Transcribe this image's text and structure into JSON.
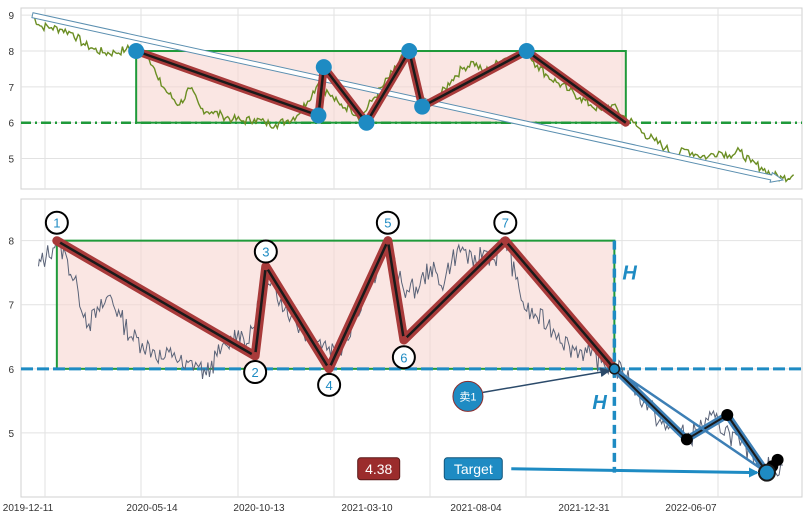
{
  "chart_data": [
    {
      "type": "line",
      "panel": "top",
      "title": "",
      "xlabel": "",
      "ylabel": "",
      "ylim": [
        4.15,
        9.2
      ],
      "yticks": [
        5,
        6,
        7,
        8,
        9
      ],
      "grid": true,
      "series": [
        {
          "color": "#6b8e23",
          "points": [
            [
              "2019-12-26",
              9.0
            ],
            [
              "2020-01-05",
              8.7
            ],
            [
              "2020-01-20",
              8.65
            ],
            [
              "2020-02-03",
              8.6
            ],
            [
              "2020-02-17",
              8.5
            ],
            [
              "2020-03-02",
              8.2
            ],
            [
              "2020-03-16",
              8.05
            ],
            [
              "2020-03-30",
              7.95
            ],
            [
              "2020-04-13",
              7.95
            ],
            [
              "2020-04-27",
              8.05
            ],
            [
              "2020-05-11",
              8.1
            ],
            [
              "2020-05-25",
              8.0
            ],
            [
              "2020-06-08",
              7.2
            ],
            [
              "2020-06-22",
              6.8
            ],
            [
              "2020-07-06",
              6.5
            ],
            [
              "2020-07-20",
              6.95
            ],
            [
              "2020-08-03",
              6.4
            ],
            [
              "2020-08-17",
              6.3
            ],
            [
              "2020-08-31",
              6.2
            ],
            [
              "2020-09-14",
              6.1
            ],
            [
              "2020-09-28",
              6.05
            ],
            [
              "2020-10-12",
              6.1
            ],
            [
              "2020-10-26",
              6.0
            ],
            [
              "2020-11-09",
              5.95
            ],
            [
              "2020-11-23",
              6.05
            ],
            [
              "2020-12-07",
              6.2
            ],
            [
              "2020-12-21",
              6.6
            ],
            [
              "2021-01-04",
              7.1
            ],
            [
              "2021-01-18",
              6.8
            ],
            [
              "2021-02-01",
              6.5
            ],
            [
              "2021-02-15",
              6.4
            ],
            [
              "2021-03-01",
              6.15
            ],
            [
              "2021-03-15",
              6.6
            ],
            [
              "2021-03-29",
              7.0
            ],
            [
              "2021-04-12",
              7.4
            ],
            [
              "2021-04-26",
              7.9
            ],
            [
              "2021-05-03",
              7.95
            ],
            [
              "2021-05-17",
              6.7
            ],
            [
              "2021-05-31",
              6.5
            ],
            [
              "2021-06-14",
              6.8
            ],
            [
              "2021-06-28",
              7.2
            ],
            [
              "2021-07-12",
              7.5
            ],
            [
              "2021-07-26",
              7.7
            ],
            [
              "2021-08-09",
              7.4
            ],
            [
              "2021-08-23",
              7.6
            ],
            [
              "2021-09-06",
              7.8
            ],
            [
              "2021-09-20",
              7.9
            ],
            [
              "2021-10-04",
              8.0
            ],
            [
              "2021-10-18",
              7.6
            ],
            [
              "2021-11-01",
              7.3
            ],
            [
              "2021-11-15",
              7.1
            ],
            [
              "2021-11-29",
              6.9
            ],
            [
              "2021-12-13",
              6.7
            ],
            [
              "2021-12-27",
              6.5
            ],
            [
              "2022-01-10",
              6.35
            ],
            [
              "2022-01-24",
              6.5
            ],
            [
              "2022-02-07",
              6.2
            ],
            [
              "2022-02-21",
              6.0
            ],
            [
              "2022-03-07",
              5.7
            ],
            [
              "2022-03-21",
              5.5
            ],
            [
              "2022-04-04",
              5.3
            ],
            [
              "2022-04-18",
              5.1
            ],
            [
              "2022-05-02",
              5.25
            ],
            [
              "2022-05-16",
              5.1
            ],
            [
              "2022-05-30",
              5.05
            ],
            [
              "2022-06-13",
              5.2
            ],
            [
              "2022-06-27",
              5.1
            ],
            [
              "2022-07-11",
              5.2
            ],
            [
              "2022-07-25",
              4.9
            ],
            [
              "2022-08-08",
              4.75
            ],
            [
              "2022-08-22",
              4.55
            ],
            [
              "2022-09-05",
              4.45
            ],
            [
              "2022-09-19",
              4.55
            ]
          ]
        }
      ],
      "pattern_box": {
        "x0": "2020-05-10",
        "x1": "2022-02-11",
        "y0": 6.0,
        "y1": 8.0,
        "stroke": "#1f9a3a",
        "fill": "#f6d6d0"
      },
      "neckline": {
        "y": 6.0,
        "color": "#1f9a3a"
      },
      "trend_arrow": {
        "from": [
          "2019-12-26",
          9.0
        ],
        "to": [
          "2022-09-05",
          4.4
        ]
      },
      "zigzag": [
        [
          "2020-05-10",
          8.0
        ],
        [
          "2021-01-04",
          6.2
        ],
        [
          "2021-01-11",
          7.55
        ],
        [
          "2021-03-08",
          6.0
        ],
        [
          "2021-05-03",
          8.0
        ],
        [
          "2021-05-20",
          6.45
        ],
        [
          "2021-10-04",
          8.0
        ],
        [
          "2022-02-11",
          6.0
        ]
      ],
      "zigzag_markers": [
        [
          "2020-05-10",
          8.0
        ],
        [
          "2021-01-04",
          6.2
        ],
        [
          "2021-01-11",
          7.55
        ],
        [
          "2021-03-08",
          6.0
        ],
        [
          "2021-05-03",
          8.0
        ],
        [
          "2021-05-20",
          6.45
        ],
        [
          "2021-10-04",
          8.0
        ]
      ]
    },
    {
      "type": "line",
      "panel": "bottom",
      "title": "",
      "xlabel": "",
      "ylabel": "",
      "ylim": [
        4.0,
        8.65
      ],
      "yticks": [
        5,
        6,
        7,
        8
      ],
      "xticks": [
        "2019-12-11",
        "2020-05-14",
        "2020-10-13",
        "2021-03-10",
        "2021-08-04",
        "2021-12-31",
        "2022-06-07"
      ],
      "grid": true,
      "series": [
        {
          "color": "#5a6378",
          "points": [
            [
              "2020-01-03",
              7.6
            ],
            [
              "2020-01-13",
              7.75
            ],
            [
              "2020-01-27",
              8.0
            ],
            [
              "2020-02-10",
              7.7
            ],
            [
              "2020-02-24",
              7.2
            ],
            [
              "2020-03-09",
              6.7
            ],
            [
              "2020-03-23",
              6.9
            ],
            [
              "2020-04-06",
              7.15
            ],
            [
              "2020-04-20",
              6.8
            ],
            [
              "2020-05-04",
              6.5
            ],
            [
              "2020-05-18",
              6.4
            ],
            [
              "2020-06-01",
              6.3
            ],
            [
              "2020-06-15",
              6.15
            ],
            [
              "2020-06-29",
              6.25
            ],
            [
              "2020-07-13",
              6.0
            ],
            [
              "2020-07-27",
              6.1
            ],
            [
              "2020-08-10",
              5.9
            ],
            [
              "2020-08-24",
              6.2
            ],
            [
              "2020-09-07",
              6.35
            ],
            [
              "2020-09-21",
              6.6
            ],
            [
              "2020-10-05",
              6.4
            ],
            [
              "2020-10-19",
              7.0
            ],
            [
              "2020-11-02",
              7.3
            ],
            [
              "2020-11-16",
              7.1
            ],
            [
              "2020-11-30",
              6.85
            ],
            [
              "2020-12-14",
              6.6
            ],
            [
              "2020-12-28",
              6.5
            ],
            [
              "2021-01-11",
              6.4
            ],
            [
              "2021-01-25",
              6.3
            ],
            [
              "2021-02-08",
              6.4
            ],
            [
              "2021-02-22",
              6.9
            ],
            [
              "2021-03-08",
              7.2
            ],
            [
              "2021-03-22",
              7.5
            ],
            [
              "2021-04-05",
              8.0
            ],
            [
              "2021-04-19",
              7.4
            ],
            [
              "2021-05-03",
              7.2
            ],
            [
              "2021-05-17",
              7.3
            ],
            [
              "2021-05-31",
              7.6
            ],
            [
              "2021-06-14",
              7.3
            ],
            [
              "2021-06-28",
              7.7
            ],
            [
              "2021-07-12",
              7.9
            ],
            [
              "2021-07-26",
              7.6
            ],
            [
              "2021-08-09",
              7.85
            ],
            [
              "2021-08-23",
              7.7
            ],
            [
              "2021-09-06",
              8.05
            ],
            [
              "2021-09-20",
              7.4
            ],
            [
              "2021-10-04",
              6.9
            ],
            [
              "2021-10-18",
              6.8
            ],
            [
              "2021-11-01",
              6.7
            ],
            [
              "2021-11-15",
              6.55
            ],
            [
              "2021-11-29",
              6.35
            ],
            [
              "2021-12-13",
              6.3
            ],
            [
              "2021-12-27",
              6.2
            ],
            [
              "2022-01-10",
              6.1
            ],
            [
              "2022-01-24",
              6.0
            ],
            [
              "2022-02-07",
              5.95
            ],
            [
              "2022-02-21",
              5.75
            ],
            [
              "2022-03-07",
              5.5
            ],
            [
              "2022-03-21",
              5.3
            ],
            [
              "2022-04-04",
              5.05
            ],
            [
              "2022-04-18",
              5.1
            ],
            [
              "2022-05-02",
              4.9
            ],
            [
              "2022-05-16",
              5.05
            ],
            [
              "2022-05-30",
              5.2
            ],
            [
              "2022-06-13",
              5.15
            ],
            [
              "2022-06-27",
              5.0
            ],
            [
              "2022-07-11",
              4.8
            ],
            [
              "2022-07-25",
              4.7
            ],
            [
              "2022-08-08",
              4.55
            ],
            [
              "2022-08-22",
              4.45
            ],
            [
              "2022-09-05",
              4.5
            ]
          ]
        }
      ],
      "pattern_box": {
        "x0": "2020-01-27",
        "x1": "2022-01-27",
        "y0": 6.0,
        "y1": 8.0,
        "stroke": "#1f9a3a",
        "fill": "#f6d6d0"
      },
      "neckline": {
        "y": 6.0,
        "color": "#1e8bc3"
      },
      "zigzag": [
        [
          "2020-01-27",
          8.0
        ],
        [
          "2020-10-13",
          6.2
        ],
        [
          "2020-10-27",
          7.6
        ],
        [
          "2021-01-18",
          6.0
        ],
        [
          "2021-04-05",
          8.0
        ],
        [
          "2021-04-26",
          6.45
        ],
        [
          "2021-09-06",
          8.0
        ],
        [
          "2022-01-27",
          6.0
        ]
      ],
      "points": [
        {
          "label": "1",
          "at": [
            "2020-01-27",
            8.0
          ],
          "label_at": [
            "2020-01-27",
            8.28
          ]
        },
        {
          "label": "2",
          "at": [
            "2020-10-13",
            6.2
          ],
          "label_at": [
            "2020-10-13",
            5.95
          ]
        },
        {
          "label": "3",
          "at": [
            "2020-10-27",
            7.6
          ],
          "label_at": [
            "2020-10-27",
            7.83
          ]
        },
        {
          "label": "4",
          "at": [
            "2021-01-18",
            6.0
          ],
          "label_at": [
            "2021-01-18",
            5.75
          ]
        },
        {
          "label": "5",
          "at": [
            "2021-04-05",
            8.0
          ],
          "label_at": [
            "2021-04-05",
            8.28
          ]
        },
        {
          "label": "6",
          "at": [
            "2021-04-26",
            6.45
          ],
          "label_at": [
            "2021-04-26",
            6.18
          ]
        },
        {
          "label": "7",
          "at": [
            "2021-09-06",
            8.0
          ],
          "label_at": [
            "2021-09-06",
            8.28
          ]
        }
      ],
      "breakout": [
        "2022-01-27",
        6.0
      ],
      "target": [
        "2022-08-15",
        4.38
      ],
      "height_marker": {
        "label": "H",
        "color": "#1e8bc3"
      },
      "extra_zigzag": [
        [
          "2022-01-27",
          6.0
        ],
        [
          "2022-05-02",
          4.9
        ],
        [
          "2022-06-24",
          5.28
        ],
        [
          "2022-08-15",
          4.38
        ]
      ],
      "extra_markers": [
        [
          "2022-05-02",
          4.9
        ],
        [
          "2022-06-24",
          5.28
        ],
        [
          "2022-08-22",
          4.48
        ],
        [
          "2022-08-29",
          4.58
        ]
      ],
      "sell_signal": {
        "label": "卖1",
        "at": [
          "2021-07-19",
          5.57
        ],
        "arrow_to": [
          "2022-01-27",
          6.0
        ]
      },
      "value_badge": {
        "label": "4.38",
        "at": [
          "2021-03-24",
          4.44
        ],
        "color": "#9b2c2c"
      },
      "target_badge": {
        "label": "Target",
        "at": [
          "2021-07-26",
          4.44
        ],
        "color": "#1e8bc3"
      }
    }
  ]
}
